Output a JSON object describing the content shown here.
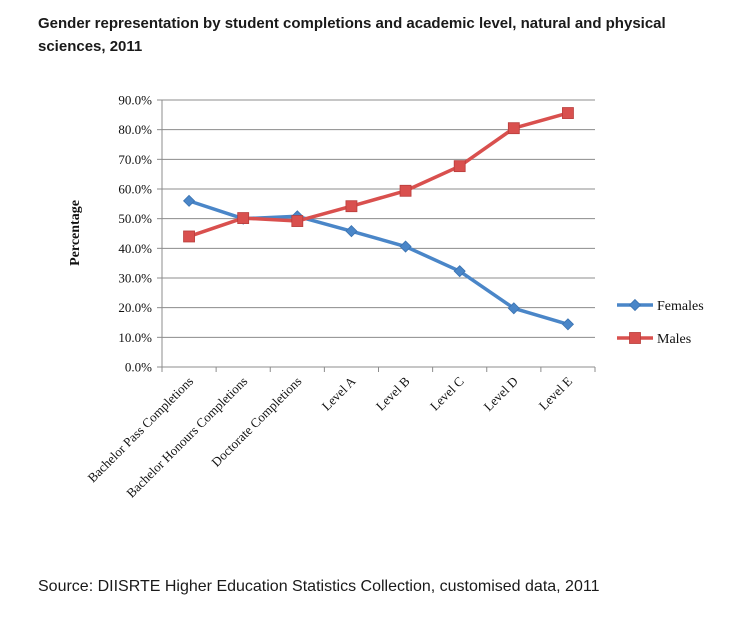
{
  "title": "Gender representation by student completions and academic level, natural and physical sciences, 2011",
  "source": "Source: DIISRTE Higher Education Statistics Collection, customised data, 2011",
  "chart_data": {
    "type": "line",
    "title": "Gender representation by student completions and academic level, natural and physical sciences, 2011",
    "xlabel": "",
    "ylabel": "Percentage",
    "ylim": [
      0,
      90
    ],
    "yticks": [
      "0.0%",
      "10.0%",
      "20.0%",
      "30.0%",
      "40.0%",
      "50.0%",
      "60.0%",
      "70.0%",
      "80.0%",
      "90.0%"
    ],
    "grid": true,
    "legend_position": "right",
    "categories": [
      "Bachelor Pass Completions",
      "Bachelor Honours Completions",
      "Doctorate Completions",
      "Level A",
      "Level B",
      "Level C",
      "Level D",
      "Level E"
    ],
    "series": [
      {
        "name": "Females",
        "color": "#4a86c8",
        "marker": "diamond",
        "values": [
          56.0,
          50.0,
          50.8,
          45.8,
          40.6,
          32.3,
          19.8,
          14.4
        ]
      },
      {
        "name": "Males",
        "color": "#d9504e",
        "marker": "square",
        "values": [
          44.0,
          50.2,
          49.2,
          54.2,
          59.4,
          67.7,
          80.5,
          85.6
        ]
      }
    ]
  }
}
